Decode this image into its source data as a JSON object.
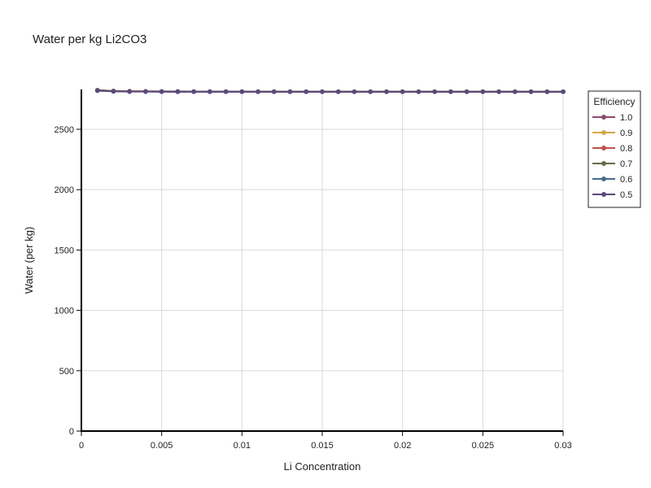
{
  "chart_data": {
    "type": "line",
    "title": "Water per kg Li2CO3",
    "xlabel": "Li Concentration",
    "ylabel": "Water (per kg)",
    "xlim": [
      0,
      0.03
    ],
    "ylim": [
      0,
      2830
    ],
    "grid": true,
    "x_ticks": [
      "0",
      "0.005",
      "0.01",
      "0.015",
      "0.02",
      "0.025",
      "0.03"
    ],
    "x_tick_values": [
      0,
      0.005,
      0.01,
      0.015,
      0.02,
      0.025,
      0.03
    ],
    "y_ticks": [
      "0",
      "500",
      "1000",
      "1500",
      "2000",
      "2500"
    ],
    "y_tick_values": [
      0,
      500,
      1000,
      1500,
      2000,
      2500
    ],
    "legend_title": "Efficiency",
    "legend_placement": "right",
    "x": [
      0.001,
      0.002,
      0.003,
      0.004,
      0.005,
      0.006,
      0.007,
      0.008,
      0.009,
      0.01,
      0.011,
      0.012,
      0.013,
      0.014,
      0.015,
      0.016,
      0.017,
      0.018,
      0.019,
      0.02,
      0.021,
      0.022,
      0.023,
      0.024,
      0.025,
      0.026,
      0.027,
      0.028,
      0.029,
      0.03
    ],
    "series": [
      {
        "name": "1.0",
        "color": "#8b4a6b",
        "values": [
          2825,
          2818,
          2816,
          2815,
          2814,
          2814,
          2813,
          2813,
          2813,
          2813,
          2813,
          2813,
          2812,
          2812,
          2812,
          2812,
          2812,
          2812,
          2812,
          2812,
          2812,
          2812,
          2812,
          2812,
          2812,
          2812,
          2812,
          2812,
          2812,
          2812
        ]
      },
      {
        "name": "0.9",
        "color": "#d4a84b",
        "values": [
          2824,
          2817,
          2815,
          2814,
          2814,
          2813,
          2813,
          2813,
          2813,
          2812,
          2812,
          2812,
          2812,
          2812,
          2812,
          2812,
          2812,
          2812,
          2812,
          2812,
          2812,
          2812,
          2812,
          2812,
          2812,
          2812,
          2812,
          2812,
          2812,
          2812
        ]
      },
      {
        "name": "0.8",
        "color": "#c0504d",
        "values": [
          2823,
          2817,
          2815,
          2814,
          2813,
          2813,
          2813,
          2812,
          2812,
          2812,
          2812,
          2812,
          2812,
          2812,
          2812,
          2812,
          2812,
          2812,
          2812,
          2812,
          2812,
          2812,
          2812,
          2812,
          2812,
          2812,
          2812,
          2812,
          2811,
          2811
        ]
      },
      {
        "name": "0.7",
        "color": "#6b6b4a",
        "values": [
          2822,
          2816,
          2814,
          2813,
          2813,
          2812,
          2812,
          2812,
          2812,
          2812,
          2812,
          2812,
          2812,
          2812,
          2812,
          2812,
          2811,
          2811,
          2811,
          2811,
          2811,
          2811,
          2811,
          2811,
          2811,
          2811,
          2811,
          2811,
          2811,
          2811
        ]
      },
      {
        "name": "0.6",
        "color": "#4a6b8b",
        "values": [
          2821,
          2815,
          2813,
          2813,
          2812,
          2812,
          2812,
          2812,
          2812,
          2812,
          2811,
          2811,
          2811,
          2811,
          2811,
          2811,
          2811,
          2811,
          2811,
          2811,
          2811,
          2811,
          2811,
          2811,
          2811,
          2811,
          2811,
          2811,
          2811,
          2811
        ]
      },
      {
        "name": "0.5",
        "color": "#5a4a7a",
        "values": [
          2820,
          2814,
          2812,
          2812,
          2811,
          2811,
          2811,
          2811,
          2811,
          2811,
          2811,
          2811,
          2811,
          2811,
          2811,
          2811,
          2811,
          2811,
          2811,
          2811,
          2811,
          2811,
          2811,
          2811,
          2811,
          2811,
          2811,
          2811,
          2811,
          2811
        ]
      }
    ]
  }
}
